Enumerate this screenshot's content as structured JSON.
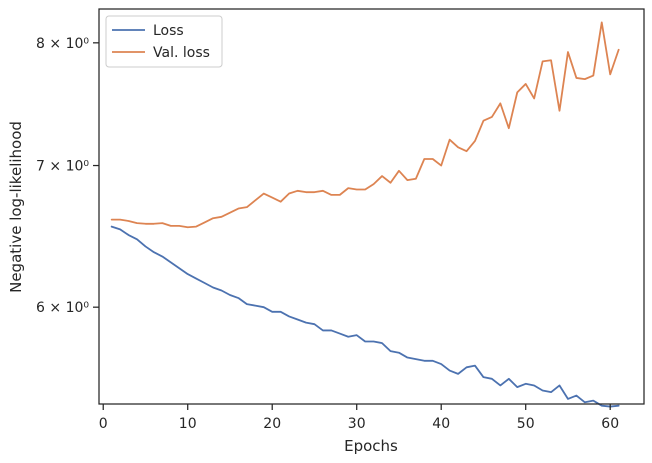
{
  "chart_data": {
    "type": "line",
    "xlabel": "Epochs",
    "ylabel": "Negative log-likelihood",
    "xlim": [
      -0.5,
      64
    ],
    "ylim": [
      5.4,
      8.3
    ],
    "yscale": "log",
    "grid": false,
    "legend_position": "top-left",
    "x_ticks": [
      0,
      10,
      20,
      30,
      40,
      50,
      60
    ],
    "x_tick_labels": [
      "0",
      "10",
      "20",
      "30",
      "40",
      "50",
      "60"
    ],
    "y_ticks": [
      6,
      7,
      8
    ],
    "y_tick_labels": [
      "6 × 10⁰",
      "7 × 10⁰",
      "8 × 10⁰"
    ],
    "x": [
      1,
      2,
      3,
      4,
      5,
      6,
      7,
      8,
      9,
      10,
      11,
      12,
      13,
      14,
      15,
      16,
      17,
      18,
      19,
      20,
      21,
      22,
      23,
      24,
      25,
      26,
      27,
      28,
      29,
      30,
      31,
      32,
      33,
      34,
      35,
      36,
      37,
      38,
      39,
      40,
      41,
      42,
      43,
      44,
      45,
      46,
      47,
      48,
      49,
      50,
      51,
      52,
      53,
      54,
      55,
      56,
      57,
      58,
      59,
      60,
      61
    ],
    "series": [
      {
        "name": "Loss",
        "color": "#4c72b0",
        "values": [
          6.55,
          6.53,
          6.49,
          6.46,
          6.41,
          6.37,
          6.34,
          6.3,
          6.26,
          6.22,
          6.19,
          6.16,
          6.13,
          6.11,
          6.08,
          6.06,
          6.02,
          6.01,
          6.0,
          5.97,
          5.97,
          5.94,
          5.92,
          5.9,
          5.89,
          5.85,
          5.85,
          5.83,
          5.81,
          5.82,
          5.78,
          5.78,
          5.77,
          5.72,
          5.71,
          5.68,
          5.67,
          5.66,
          5.66,
          5.64,
          5.6,
          5.58,
          5.62,
          5.63,
          5.56,
          5.55,
          5.51,
          5.55,
          5.5,
          5.52,
          5.51,
          5.48,
          5.47,
          5.51,
          5.43,
          5.45,
          5.41,
          5.42,
          5.39,
          5.385,
          5.39
        ]
      },
      {
        "name": "Val. loss",
        "color": "#dd8452",
        "values": [
          6.6,
          6.6,
          6.59,
          6.575,
          6.57,
          6.57,
          6.575,
          6.555,
          6.555,
          6.545,
          6.55,
          6.58,
          6.61,
          6.62,
          6.65,
          6.68,
          6.69,
          6.74,
          6.79,
          6.76,
          6.73,
          6.79,
          6.81,
          6.8,
          6.8,
          6.81,
          6.78,
          6.78,
          6.83,
          6.82,
          6.82,
          6.86,
          6.92,
          6.87,
          6.96,
          6.89,
          6.9,
          7.05,
          7.05,
          7.0,
          7.2,
          7.14,
          7.11,
          7.19,
          7.35,
          7.38,
          7.49,
          7.29,
          7.58,
          7.65,
          7.53,
          7.84,
          7.85,
          7.43,
          7.92,
          7.7,
          7.69,
          7.72,
          8.18,
          7.73,
          7.94
        ]
      }
    ]
  }
}
